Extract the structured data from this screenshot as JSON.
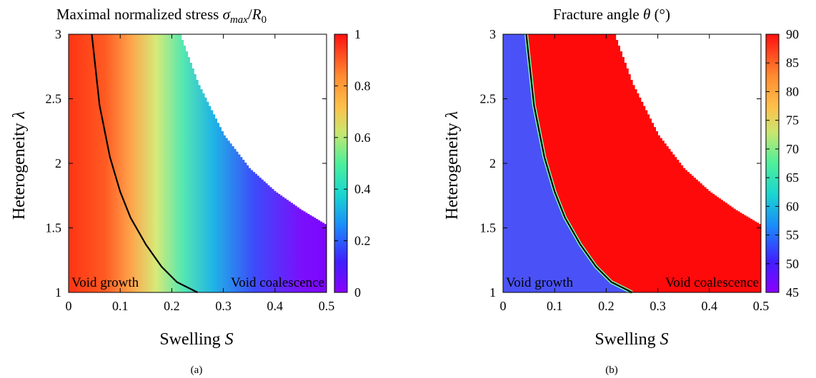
{
  "chart_data": [
    {
      "type": "heatmap",
      "panel": "(a)",
      "title": "Maximal normalized stress σ_max/R₀",
      "title_parts": {
        "prefix": "Maximal normalized stress ",
        "sym": "σ",
        "sub": "max",
        "mid": "/",
        "sym2": "R",
        "sub2": "0"
      },
      "xlabel": "Swelling S",
      "xlabel_parts": {
        "word": "Swelling ",
        "sym": "S"
      },
      "ylabel": "Heterogeneity λ",
      "ylabel_parts": {
        "word": "Heterogeneity ",
        "sym": "λ"
      },
      "xlim": [
        0,
        0.5
      ],
      "ylim": [
        1,
        3
      ],
      "xticks": [
        "0",
        "0.1",
        "0.2",
        "0.3",
        "0.4",
        "0.5"
      ],
      "yticks": [
        "1",
        "1.5",
        "2",
        "2.5",
        "3"
      ],
      "colorbar": {
        "range": [
          0,
          1
        ],
        "ticks": [
          "0",
          "0.2",
          "0.4",
          "0.6",
          "0.8",
          "1"
        ],
        "colormap": "rainbow (purple → blue → cyan → green → yellow → orange → red)"
      },
      "regions": [
        "Void growth",
        "Void coalescence"
      ],
      "boundary_curve": {
        "x": [
          0.045,
          0.06,
          0.08,
          0.1,
          0.12,
          0.15,
          0.18,
          0.21,
          0.25
        ],
        "y": [
          3.0,
          2.45,
          2.05,
          1.78,
          1.58,
          1.37,
          1.2,
          1.08,
          1.0
        ]
      },
      "valid_region_edge": {
        "x": [
          0.215,
          0.25,
          0.3,
          0.35,
          0.4,
          0.45,
          0.5
        ],
        "y": [
          3.0,
          2.62,
          2.22,
          1.96,
          1.78,
          1.64,
          1.52
        ]
      }
    },
    {
      "type": "heatmap",
      "panel": "(b)",
      "title": "Fracture angle θ (°)",
      "title_parts": {
        "prefix": "Fracture angle ",
        "sym": "θ",
        "suffix": " (°)"
      },
      "xlabel": "Swelling S",
      "xlabel_parts": {
        "word": "Swelling ",
        "sym": "S"
      },
      "ylabel": "Heterogeneity λ",
      "ylabel_parts": {
        "word": "Heterogeneity ",
        "sym": "λ"
      },
      "xlim": [
        0,
        0.5
      ],
      "ylim": [
        1,
        3
      ],
      "xticks": [
        "0",
        "0.1",
        "0.2",
        "0.3",
        "0.4",
        "0.5"
      ],
      "yticks": [
        "1",
        "1.5",
        "2",
        "2.5",
        "3"
      ],
      "colorbar": {
        "range": [
          45,
          90
        ],
        "ticks": [
          "45",
          "50",
          "55",
          "60",
          "65",
          "70",
          "75",
          "80",
          "85",
          "90"
        ],
        "colormap": "rainbow (purple → blue → cyan → green → yellow → orange → red)"
      },
      "region_values": {
        "void_growth_angle": 52,
        "void_coalescence_angle": 90
      },
      "regions": [
        "Void growth",
        "Void coalescence"
      ],
      "boundary_curve": {
        "x": [
          0.045,
          0.06,
          0.08,
          0.1,
          0.12,
          0.15,
          0.18,
          0.21,
          0.25
        ],
        "y": [
          3.0,
          2.45,
          2.05,
          1.78,
          1.58,
          1.37,
          1.2,
          1.08,
          1.0
        ]
      },
      "valid_region_edge": {
        "x": [
          0.215,
          0.25,
          0.3,
          0.35,
          0.4,
          0.45,
          0.5
        ],
        "y": [
          3.0,
          2.62,
          2.22,
          1.96,
          1.78,
          1.64,
          1.52
        ]
      }
    }
  ],
  "captions": [
    "(a)",
    "(b)"
  ]
}
